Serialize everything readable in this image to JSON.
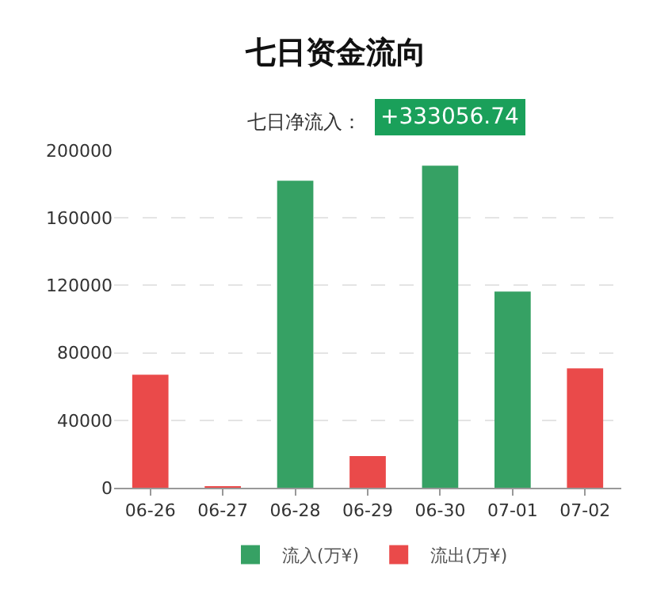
{
  "chart_data": {
    "type": "bar",
    "title": "七日资金流向",
    "annotations": [
      "七日净流入：",
      "+333056.74"
    ],
    "categories": [
      "06-26",
      "06-27",
      "06-28",
      "06-29",
      "06-30",
      "07-01",
      "07-02"
    ],
    "series": [
      {
        "name": "流入(万¥)",
        "color": "#36a164",
        "values": [
          null,
          null,
          182000,
          null,
          191000,
          116300,
          null
        ]
      },
      {
        "name": "流出(万¥)",
        "color": "#ea4a4a",
        "values": [
          67000,
          500,
          null,
          18800,
          null,
          null,
          70800
        ]
      }
    ],
    "stacked": true,
    "ylim": [
      0,
      200000
    ],
    "yticks": [
      0,
      40000,
      80000,
      120000,
      160000,
      200000
    ],
    "grid": "y",
    "legend": "bottom"
  }
}
